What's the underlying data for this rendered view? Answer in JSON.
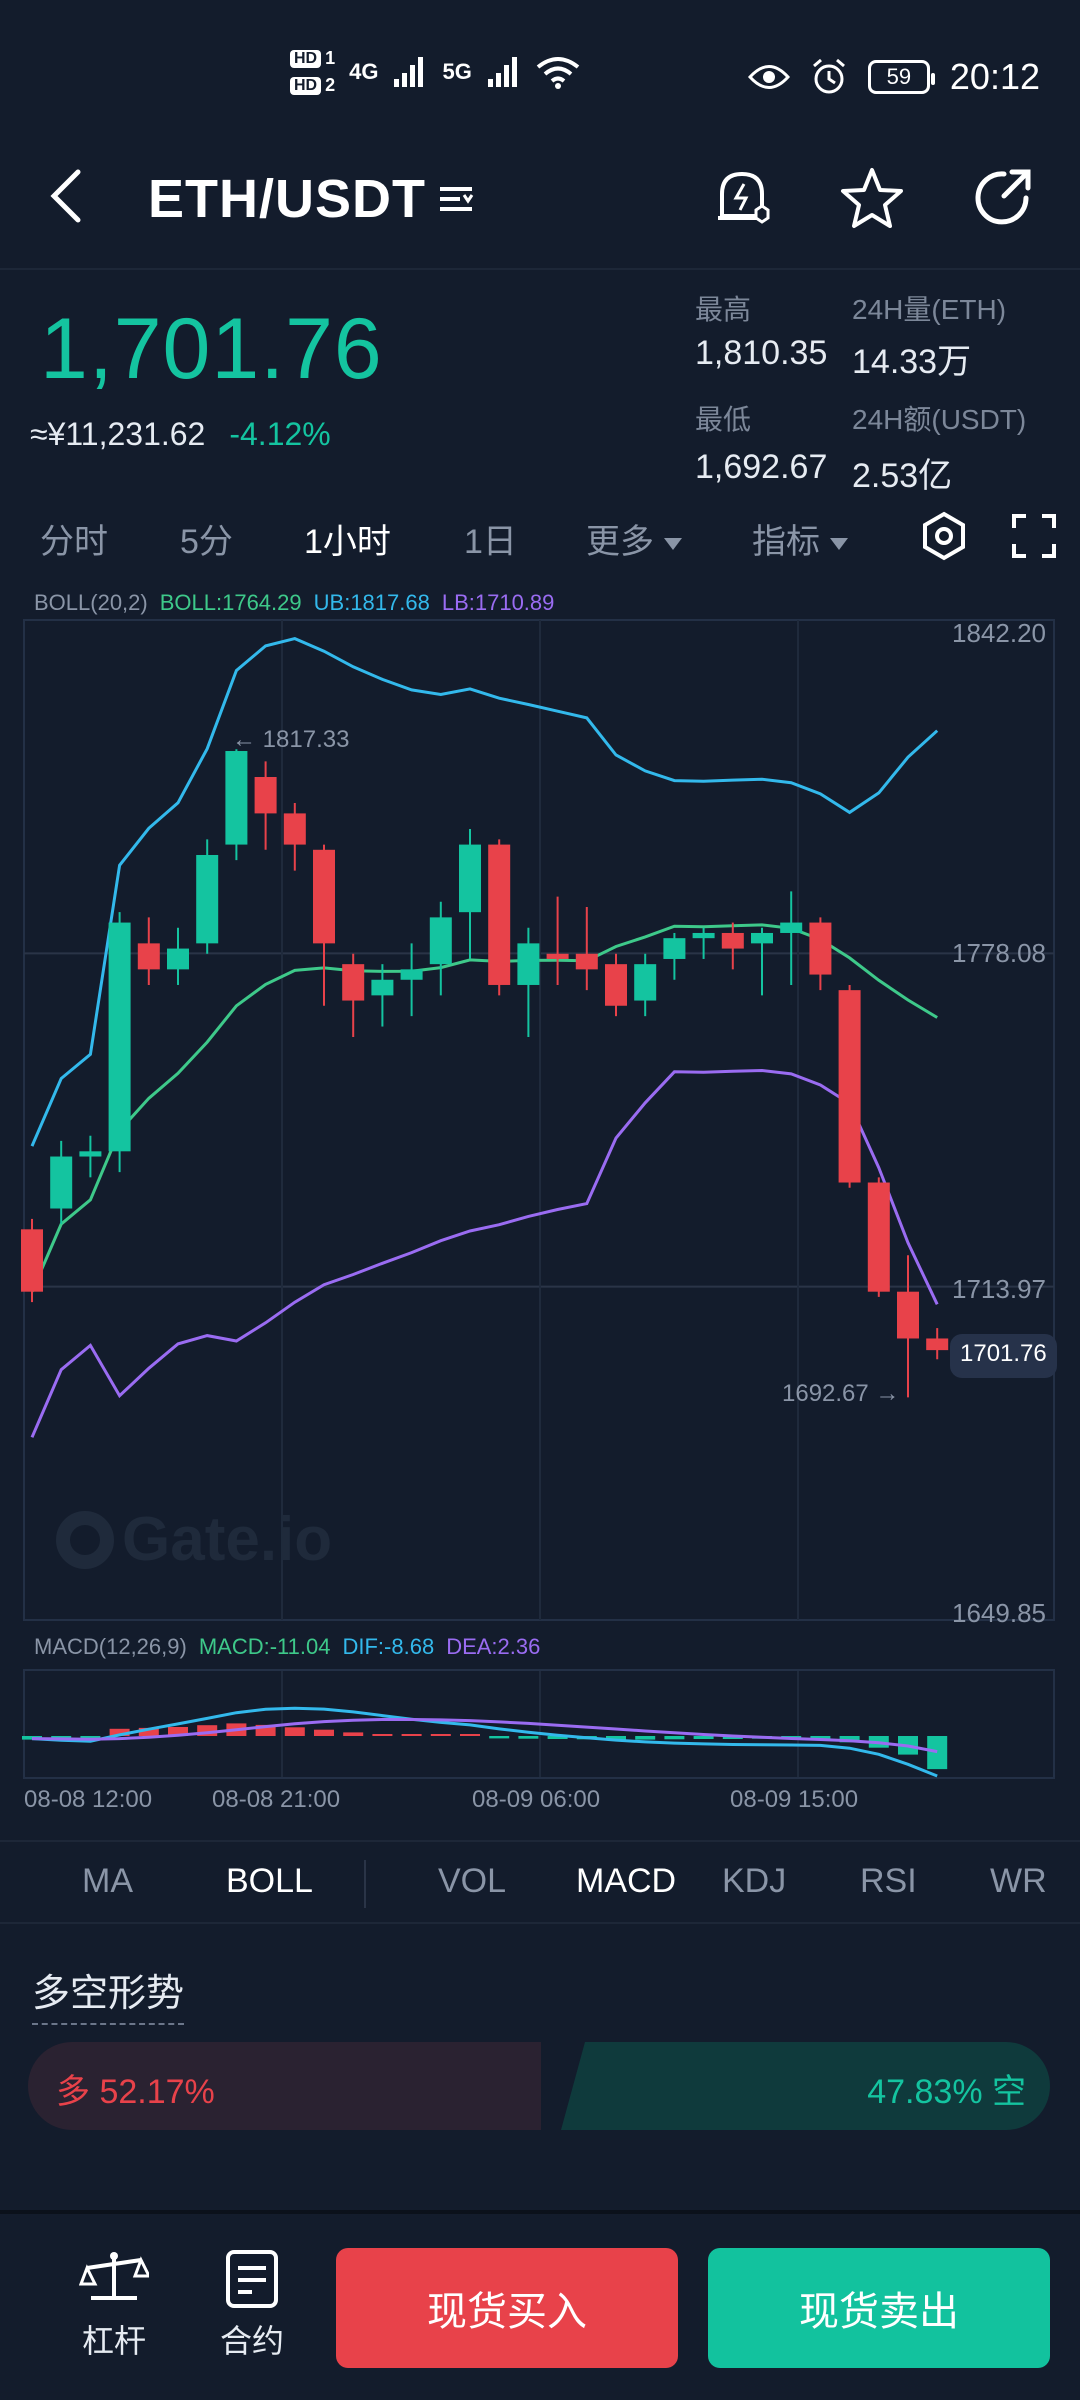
{
  "status_bar": {
    "hd1": "HD",
    "hd1_n": "1",
    "hd2": "HD",
    "hd2_n": "2",
    "net1": "4G",
    "net2": "5G",
    "battery": "59",
    "time": "20:12"
  },
  "header": {
    "pair": "ETH/USDT",
    "icons": [
      "back-arrow-icon",
      "menu-lines-icon",
      "price-alert-icon",
      "star-icon",
      "share-icon"
    ]
  },
  "ticker": {
    "last_price": "1,701.76",
    "cny_price": "≈¥11,231.62",
    "change_pct": "-4.12%",
    "high_label": "最高",
    "high_value": "1,810.35",
    "low_label": "最低",
    "low_value": "1,692.67",
    "vol_label": "24H量(ETH)",
    "vol_value": "14.33万",
    "amount_label": "24H额(USDT)",
    "amount_value": "2.53亿"
  },
  "timeframes": {
    "items": [
      "分时",
      "5分",
      "1小时",
      "1日"
    ],
    "active": "1小时",
    "more": "更多",
    "indicators": "指标"
  },
  "boll": {
    "name": "BOLL(20,2)",
    "mid": "BOLL:1764.29",
    "ub": "UB:1817.68",
    "lb": "LB:1710.89"
  },
  "macd": {
    "name": "MACD(12,26,9)",
    "macd": "MACD:-11.04",
    "dif": "DIF:-8.68",
    "dea": "DEA:2.36"
  },
  "chart": {
    "y_ticks": [
      "1842.20",
      "1778.08",
      "1713.97",
      "1649.85"
    ],
    "x_ticks": [
      "08-08 12:00",
      "08-08 21:00",
      "08-09 06:00",
      "08-09 15:00"
    ],
    "high_mark": "1817.33",
    "low_mark": "1692.67",
    "current_tag": "1701.76",
    "watermark": "Gate.io"
  },
  "chart_data": {
    "type": "candlestick",
    "y_range": [
      1649.85,
      1842.2
    ],
    "candles": [
      {
        "o": 1725,
        "c": 1713,
        "h": 1727,
        "l": 1711
      },
      {
        "o": 1729,
        "c": 1739,
        "h": 1742,
        "l": 1726
      },
      {
        "o": 1739,
        "c": 1740,
        "h": 1743,
        "l": 1735
      },
      {
        "o": 1740,
        "c": 1784,
        "h": 1786,
        "l": 1736
      },
      {
        "o": 1780,
        "c": 1775,
        "h": 1785,
        "l": 1772
      },
      {
        "o": 1775,
        "c": 1779,
        "h": 1783,
        "l": 1772
      },
      {
        "o": 1780,
        "c": 1797,
        "h": 1800,
        "l": 1778
      },
      {
        "o": 1799,
        "c": 1817,
        "h": 1817.33,
        "l": 1796
      },
      {
        "o": 1812,
        "c": 1805,
        "h": 1815,
        "l": 1798
      },
      {
        "o": 1805,
        "c": 1799,
        "h": 1807,
        "l": 1794
      },
      {
        "o": 1798,
        "c": 1780,
        "h": 1799,
        "l": 1768
      },
      {
        "o": 1776,
        "c": 1769,
        "h": 1778,
        "l": 1762
      },
      {
        "o": 1770,
        "c": 1773,
        "h": 1776,
        "l": 1764
      },
      {
        "o": 1773,
        "c": 1775,
        "h": 1780,
        "l": 1766
      },
      {
        "o": 1776,
        "c": 1785,
        "h": 1788,
        "l": 1770
      },
      {
        "o": 1786,
        "c": 1799,
        "h": 1802,
        "l": 1777
      },
      {
        "o": 1799,
        "c": 1772,
        "h": 1800,
        "l": 1770
      },
      {
        "o": 1772,
        "c": 1780,
        "h": 1783,
        "l": 1762
      },
      {
        "o": 1778,
        "c": 1777,
        "h": 1789,
        "l": 1772
      },
      {
        "o": 1778,
        "c": 1775,
        "h": 1787,
        "l": 1771
      },
      {
        "o": 1776,
        "c": 1768,
        "h": 1778,
        "l": 1766
      },
      {
        "o": 1769,
        "c": 1776,
        "h": 1778,
        "l": 1766
      },
      {
        "o": 1777,
        "c": 1781,
        "h": 1782,
        "l": 1773
      },
      {
        "o": 1781,
        "c": 1782,
        "h": 1783,
        "l": 1777
      },
      {
        "o": 1782,
        "c": 1779,
        "h": 1784,
        "l": 1775
      },
      {
        "o": 1780,
        "c": 1782,
        "h": 1783,
        "l": 1770
      },
      {
        "o": 1782,
        "c": 1784,
        "h": 1790,
        "l": 1772
      },
      {
        "o": 1784,
        "c": 1774,
        "h": 1785,
        "l": 1771
      },
      {
        "o": 1771,
        "c": 1734,
        "h": 1772,
        "l": 1733
      },
      {
        "o": 1734,
        "c": 1713,
        "h": 1735,
        "l": 1712
      },
      {
        "o": 1713,
        "c": 1704,
        "h": 1720,
        "l": 1692.67
      },
      {
        "o": 1704,
        "c": 1701.76,
        "h": 1706,
        "l": 1700
      }
    ],
    "macd_hist": [
      -1.2,
      -1.0,
      -0.8,
      2.4,
      2.7,
      3.0,
      3.6,
      4.2,
      3.7,
      2.9,
      2.1,
      1.2,
      0.5,
      0.2,
      0.1,
      0.1,
      -0.8,
      -0.9,
      -1.0,
      -1.1,
      -1.2,
      -1.2,
      -1.1,
      -1.0,
      -1.0,
      -0.9,
      -0.9,
      -1.0,
      -2.1,
      -3.9,
      -6.2,
      -11.04
    ]
  },
  "indicator_tabs": {
    "main": [
      "MA",
      "BOLL"
    ],
    "sub": [
      "VOL",
      "MACD",
      "KDJ",
      "RSI",
      "WR"
    ],
    "active_main": "BOLL",
    "active_sub": "MACD"
  },
  "sentiment": {
    "title": "多空形势",
    "long": "多 52.17%",
    "short": "47.83% 空",
    "long_pct": 52.17
  },
  "bottom_bar": {
    "leverage": "杠杆",
    "contract": "合约",
    "buy": "现货买入",
    "sell": "现货卖出"
  },
  "colors": {
    "up": "#14c4a0",
    "down": "#e8424a",
    "boll_mid": "#3ec98a",
    "boll_ub": "#33b9ec",
    "boll_lb": "#9a6cf2",
    "background": "#131c2c"
  }
}
